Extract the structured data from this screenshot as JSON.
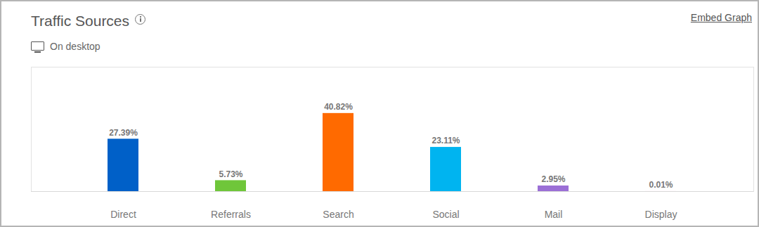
{
  "chart_data": {
    "type": "bar",
    "title": "Traffic Sources",
    "subtitle": "On desktop",
    "annotations": [
      "Embed Graph"
    ],
    "categories": [
      "Direct",
      "Referrals",
      "Search",
      "Social",
      "Mail",
      "Display"
    ],
    "values": [
      27.39,
      5.73,
      40.82,
      23.11,
      2.95,
      0.01
    ],
    "value_labels": [
      "27.39%",
      "5.73%",
      "40.82%",
      "23.11%",
      "2.95%",
      "0.01%"
    ],
    "colors": [
      "#0060c8",
      "#6fc63a",
      "#ff6a00",
      "#00b4f0",
      "#9b6fd6",
      "#e8299a"
    ],
    "ylim": [
      0,
      65
    ],
    "grid": false,
    "data_labels": true,
    "tick_labels": "x"
  }
}
